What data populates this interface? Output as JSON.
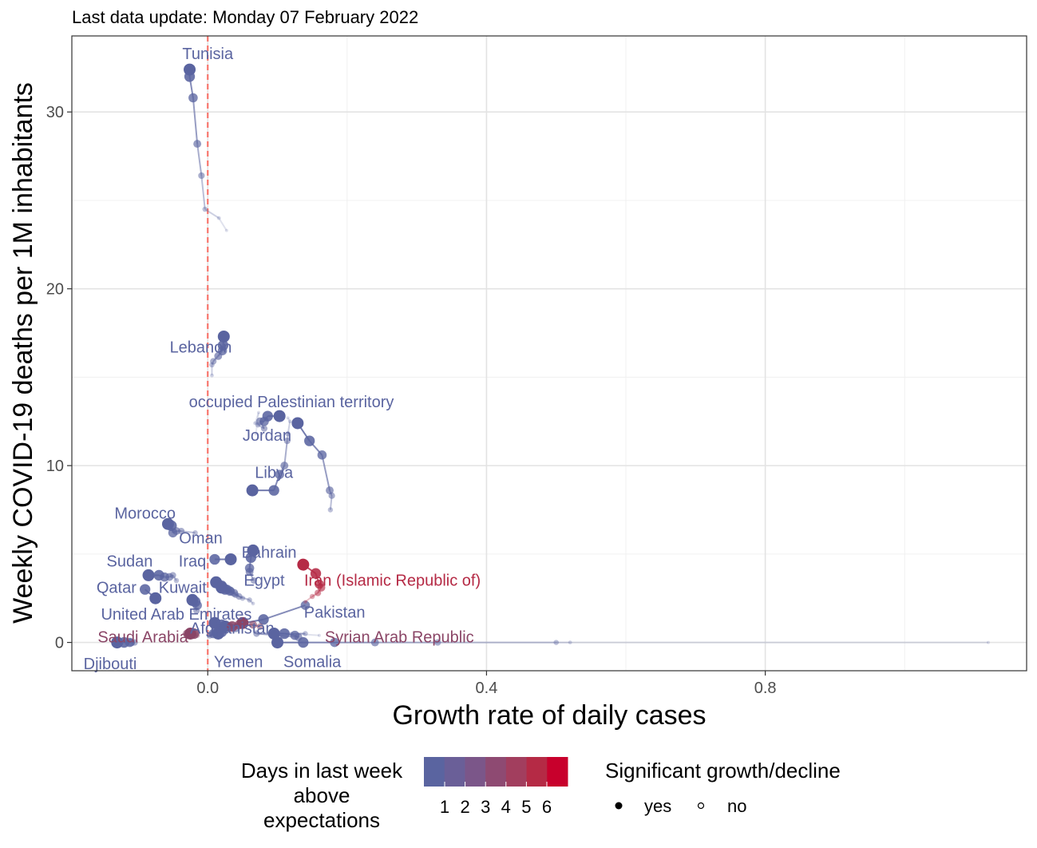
{
  "chart_data": {
    "type": "scatter",
    "subtitle": "Last data update: Monday 07 February 2022",
    "xlabel": "Growth rate of daily cases",
    "ylabel": "Weekly COVID-19 deaths per 1M inhabitants",
    "xlim": [
      -0.195,
      1.175
    ],
    "ylim": [
      -1.6,
      34.3
    ],
    "x_ticks": [
      0.0,
      0.4,
      0.8
    ],
    "x_tick_labels": [
      "0.0",
      "0.4",
      "0.8"
    ],
    "x_minor_ticks": [
      0.2,
      0.6,
      1.0
    ],
    "y_ticks": [
      0,
      10,
      20,
      30
    ],
    "y_tick_labels": [
      "0",
      "10",
      "20",
      "30"
    ],
    "y_minor_ticks": [
      5,
      15,
      25
    ],
    "reference_line_x": 0,
    "grid": true,
    "colors": {
      "blue": "#5A64A0",
      "red": "#B52A45",
      "mid": "#8A4566",
      "reference_line": "#F8766D"
    },
    "series": [
      {
        "name": "Tunisia",
        "days": 0,
        "label_pos": [
          0.0,
          33.0
        ],
        "label_anchor": "middle",
        "points": [
          [
            -0.026,
            32.4
          ],
          [
            -0.026,
            32.0
          ],
          [
            -0.021,
            30.8
          ],
          [
            -0.015,
            28.2
          ],
          [
            -0.009,
            26.4
          ],
          [
            -0.004,
            24.5
          ],
          [
            0.016,
            24.0
          ],
          [
            0.027,
            23.3
          ]
        ]
      },
      {
        "name": "Lebanon",
        "days": 0,
        "label_pos": [
          -0.01,
          16.4
        ],
        "label_anchor": "middle",
        "points": [
          [
            0.023,
            17.3
          ],
          [
            0.022,
            16.8
          ],
          [
            0.021,
            16.5
          ],
          [
            0.015,
            16.2
          ],
          [
            0.008,
            15.9
          ],
          [
            0.006,
            15.7
          ],
          [
            0.006,
            15.1
          ]
        ]
      },
      {
        "name": "occupied Palestinian territory",
        "days": 0,
        "label_pos": [
          0.12,
          13.3
        ],
        "label_anchor": "middle",
        "points": [
          [
            0.103,
            12.8
          ],
          [
            0.086,
            12.8
          ],
          [
            0.081,
            12.5
          ],
          [
            0.075,
            12.5
          ],
          [
            0.081,
            12.1
          ],
          [
            0.072,
            12.3
          ],
          [
            0.068,
            12.4
          ],
          [
            0.073,
            13.0
          ],
          [
            0.069,
            11.8
          ]
        ]
      },
      {
        "name": "Jordan",
        "days": 0,
        "label_pos": [
          0.085,
          11.4
        ],
        "label_anchor": "middle",
        "points": [
          [
            0.129,
            12.4
          ],
          [
            0.146,
            11.4
          ],
          [
            0.164,
            10.6
          ],
          [
            0.175,
            8.6
          ],
          [
            0.178,
            8.3
          ],
          [
            0.176,
            7.5
          ]
        ]
      },
      {
        "name": "Libya",
        "days": 0,
        "label_pos": [
          0.095,
          9.3
        ],
        "label_anchor": "middle",
        "points": [
          [
            0.064,
            8.6
          ],
          [
            0.095,
            8.6
          ],
          [
            0.103,
            9.5
          ],
          [
            0.11,
            10.0
          ],
          [
            0.114,
            11.4
          ],
          [
            0.115,
            11.8
          ],
          [
            0.118,
            12.5
          ],
          [
            0.115,
            12.7
          ]
        ]
      },
      {
        "name": "Morocco",
        "days": 0,
        "label_pos": [
          -0.09,
          7.0
        ],
        "label_anchor": "middle",
        "points": [
          [
            -0.057,
            6.7
          ],
          [
            -0.052,
            6.6
          ],
          [
            -0.05,
            6.2
          ],
          [
            -0.045,
            6.3
          ],
          [
            -0.038,
            6.3
          ],
          [
            -0.018,
            6.2
          ]
        ]
      },
      {
        "name": "Oman",
        "days": 0,
        "label_pos": [
          -0.01,
          5.6
        ],
        "label_anchor": "middle",
        "points": [
          [
            0.033,
            4.7
          ],
          [
            0.01,
            4.7
          ]
        ]
      },
      {
        "name": "Bahrain",
        "days": 0,
        "label_pos": [
          0.088,
          4.8
        ],
        "label_anchor": "middle",
        "points": [
          [
            0.065,
            5.2
          ],
          [
            0.062,
            4.8
          ],
          [
            0.06,
            4.2
          ],
          [
            0.06,
            4.0
          ],
          [
            0.066,
            3.5
          ]
        ]
      },
      {
        "name": "Iraq",
        "days": 0,
        "label_pos": [
          -0.022,
          4.3
        ],
        "label_anchor": "middle",
        "points": [
          [
            0.012,
            3.4
          ],
          [
            0.02,
            3.2
          ],
          [
            0.028,
            3.0
          ],
          [
            0.033,
            2.9
          ],
          [
            0.04,
            2.7
          ],
          [
            0.05,
            2.5
          ]
        ]
      },
      {
        "name": "Egypt",
        "days": 0,
        "label_pos": [
          0.081,
          3.2
        ],
        "label_anchor": "middle",
        "points": [
          [
            0.02,
            3.1
          ],
          [
            0.025,
            3.0
          ],
          [
            0.032,
            2.9
          ],
          [
            0.038,
            2.8
          ],
          [
            0.045,
            2.6
          ],
          [
            0.06,
            2.4
          ],
          [
            0.065,
            2.2
          ]
        ]
      },
      {
        "name": "Sudan",
        "days": 0,
        "label_pos": [
          -0.112,
          4.3
        ],
        "label_anchor": "middle",
        "points": [
          [
            -0.085,
            3.8
          ],
          [
            -0.07,
            3.8
          ],
          [
            -0.062,
            3.7
          ],
          [
            -0.055,
            3.7
          ],
          [
            -0.05,
            3.8
          ],
          [
            -0.045,
            3.5
          ]
        ]
      },
      {
        "name": "Qatar",
        "days": 0,
        "label_pos": [
          -0.131,
          2.8
        ],
        "label_anchor": "middle",
        "points": [
          [
            -0.075,
            2.5
          ],
          [
            -0.09,
            3.0
          ]
        ]
      },
      {
        "name": "Kuwait",
        "days": 0,
        "label_pos": [
          -0.036,
          2.8
        ],
        "label_anchor": "middle",
        "points": [
          [
            -0.022,
            2.4
          ],
          [
            -0.018,
            2.3
          ],
          [
            -0.015,
            2.1
          ],
          [
            -0.02,
            2.4
          ],
          [
            -0.016,
            1.8
          ]
        ]
      },
      {
        "name": "United Arab Emirates",
        "days": 0,
        "label_pos": [
          -0.045,
          1.3
        ],
        "label_anchor": "middle",
        "points": [
          [
            0.01,
            1.1
          ],
          [
            0.02,
            1.0
          ],
          [
            0.03,
            0.9
          ],
          [
            0.04,
            0.8
          ]
        ]
      },
      {
        "name": "Afghanistan",
        "days": 0,
        "label_pos": [
          0.035,
          0.5
        ],
        "label_anchor": "middle",
        "points": [
          [
            0.015,
            0.5
          ],
          [
            0.02,
            0.6
          ],
          [
            0.008,
            0.5
          ],
          [
            0.012,
            0.8
          ],
          [
            0.003,
            0.4
          ],
          [
            0.018,
            0.9
          ]
        ]
      },
      {
        "name": "Pakistan",
        "days": 0,
        "label_pos": [
          0.182,
          1.4
        ],
        "label_anchor": "middle",
        "points": [
          [
            0.025,
            0.9
          ],
          [
            0.08,
            1.3
          ],
          [
            0.14,
            2.1
          ]
        ]
      },
      {
        "name": "Iran (Islamic Republic of)",
        "days": 6,
        "label_pos": [
          0.265,
          3.2
        ],
        "label_anchor": "middle",
        "points": [
          [
            0.137,
            4.4
          ],
          [
            0.155,
            3.9
          ],
          [
            0.16,
            3.3
          ],
          [
            0.163,
            3.1
          ],
          [
            0.158,
            2.8
          ],
          [
            0.15,
            2.6
          ],
          [
            0.14,
            2.3
          ]
        ]
      },
      {
        "name": "Syrian Arab Republic",
        "days": 5,
        "label_pos": [
          0.275,
          0.0
        ],
        "label_anchor": "middle",
        "points": [
          [
            0.05,
            1.1
          ],
          [
            0.035,
            0.9
          ],
          [
            0.045,
            1.0
          ],
          [
            0.065,
            1.0
          ],
          [
            0.075,
            0.9
          ]
        ]
      },
      {
        "name": "Saudi Arabia",
        "days": 3,
        "label_pos": [
          -0.093,
          0.0
        ],
        "label_anchor": "middle",
        "points": [
          [
            -0.025,
            0.5
          ],
          [
            -0.02,
            0.5
          ],
          [
            -0.025,
            0.5
          ],
          [
            -0.03,
            0.5
          ],
          [
            -0.03,
            0.4
          ],
          [
            -0.015,
            0.4
          ]
        ]
      },
      {
        "name": "Somalia",
        "days": 0,
        "label_pos": [
          0.15,
          -1.4
        ],
        "label_anchor": "middle",
        "points": [
          [
            0.1,
            0.0
          ],
          [
            0.137,
            0.0
          ],
          [
            0.182,
            0.0
          ],
          [
            0.24,
            0.0
          ],
          [
            0.33,
            0.0
          ],
          [
            0.5,
            0.0
          ],
          [
            0.52,
            0.0
          ],
          [
            1.12,
            0.0
          ]
        ]
      },
      {
        "name": "Yemen",
        "days": 0,
        "label_pos": [
          0.044,
          -1.4
        ],
        "label_anchor": "middle",
        "points": [
          [
            0.095,
            0.5
          ],
          [
            0.11,
            0.5
          ],
          [
            0.125,
            0.4
          ],
          [
            0.13,
            0.3
          ],
          [
            0.07,
            0.5
          ],
          [
            0.14,
            0.5
          ],
          [
            0.12,
            0.5
          ],
          [
            0.16,
            0.4
          ]
        ]
      },
      {
        "name": "Djibouti",
        "days": 0,
        "label_pos": [
          -0.14,
          -1.5
        ],
        "label_anchor": "middle",
        "points": [
          [
            -0.13,
            0.0
          ],
          [
            -0.12,
            0.0
          ],
          [
            -0.112,
            0.0
          ],
          [
            -0.11,
            0.0
          ],
          [
            -0.105,
            0.0
          ]
        ]
      }
    ],
    "legend": {
      "color_title_lines": [
        "Days in last week",
        "above",
        "expectations"
      ],
      "color_stops": [
        "#5A64A0",
        "#6A5F98",
        "#7B5689",
        "#8E4A72",
        "#A23E5E",
        "#B52A45",
        "#C8002C"
      ],
      "color_labels": [
        "1",
        "2",
        "3",
        "4",
        "5",
        "6"
      ],
      "shape_title": "Significant growth/decline",
      "shape_items": [
        {
          "label": "yes",
          "filled": true
        },
        {
          "label": "no",
          "filled": false
        }
      ]
    }
  }
}
